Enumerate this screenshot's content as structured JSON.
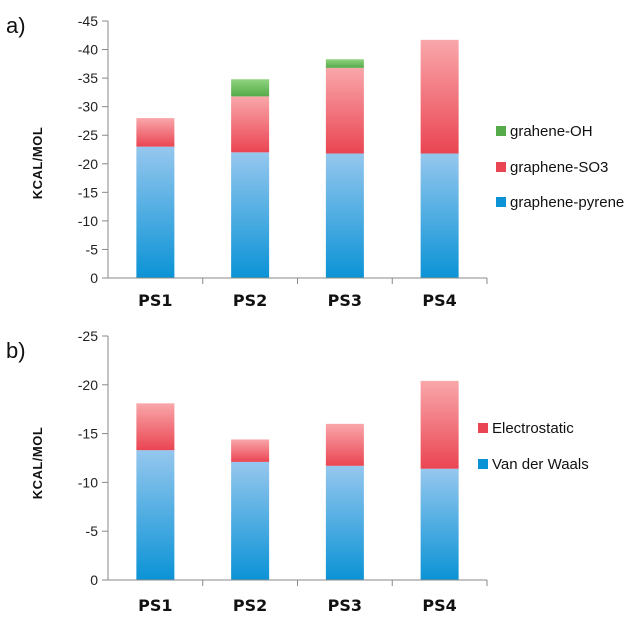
{
  "colors": {
    "vdw_top": "#95c7ee",
    "vdw_bottom": "#0b93d6",
    "red_top": "#f9a7ab",
    "red_bottom": "#ea4552",
    "green_top": "#8fd47f",
    "green_bottom": "#55aa49",
    "axis": "#888888"
  },
  "chart_data": [
    {
      "type": "bar",
      "stacked": true,
      "panel_label": "a)",
      "title": "",
      "xlabel": "",
      "ylabel": "KCAL/MOL",
      "ylim": [
        0,
        -45
      ],
      "yticks": [
        0,
        -5,
        -10,
        -15,
        -20,
        -25,
        -30,
        -35,
        -40,
        -45
      ],
      "grid": false,
      "legend_position": "right",
      "categories": [
        "PS1",
        "PS2",
        "PS3",
        "PS4"
      ],
      "series": [
        {
          "name": "graphene-pyrene",
          "color": "blue",
          "values": [
            -23,
            -22,
            -21.8,
            -21.8
          ]
        },
        {
          "name": "graphene-SO3",
          "color": "red",
          "values": [
            -5,
            -9.8,
            -15,
            -19.9
          ]
        },
        {
          "name": "grahene-OH",
          "color": "green",
          "values": [
            0,
            -3,
            -1.5,
            0
          ]
        }
      ]
    },
    {
      "type": "bar",
      "stacked": true,
      "panel_label": "b)",
      "title": "",
      "xlabel": "",
      "ylabel": "KCAL/MOL",
      "ylim": [
        0,
        -25
      ],
      "yticks": [
        0,
        -5,
        -10,
        -15,
        -20,
        -25
      ],
      "grid": false,
      "legend_position": "right",
      "categories": [
        "PS1",
        "PS2",
        "PS3",
        "PS4"
      ],
      "series": [
        {
          "name": "Van der Waals",
          "color": "blue",
          "values": [
            -13.3,
            -12.1,
            -11.7,
            -11.4
          ]
        },
        {
          "name": "Electrostatic",
          "color": "red",
          "values": [
            -4.8,
            -2.3,
            -4.3,
            -9
          ]
        }
      ]
    }
  ]
}
